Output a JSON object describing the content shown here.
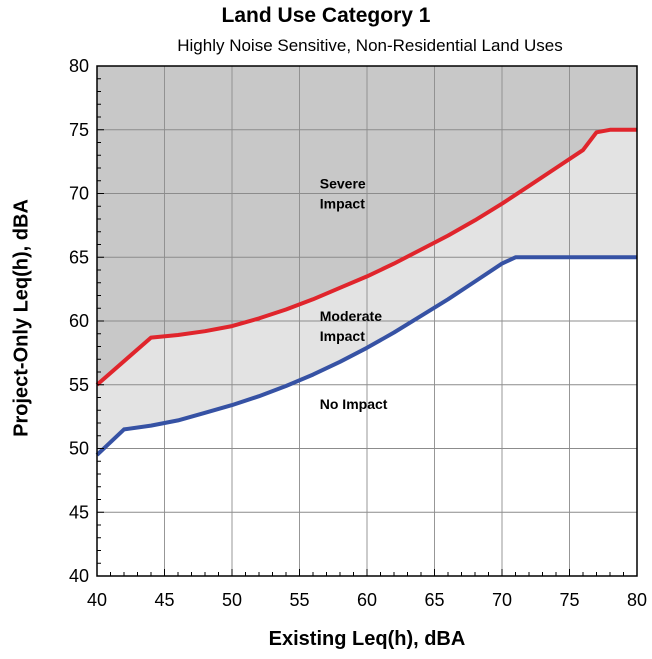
{
  "chart_data": {
    "type": "area",
    "title": "Land Use Category 1",
    "subtitle": "Highly Noise Sensitive, Non-Residential Land Uses",
    "xlabel": "Existing Leq(h), dBA",
    "ylabel": "Project-Only Leq(h), dBA",
    "xlim": [
      40,
      80
    ],
    "ylim": [
      40,
      80
    ],
    "x_ticks": [
      40,
      45,
      50,
      55,
      60,
      65,
      70,
      75,
      80
    ],
    "y_ticks": [
      40,
      45,
      50,
      55,
      60,
      65,
      70,
      75,
      80
    ],
    "grid": true,
    "series": [
      {
        "name": "",
        "color": "#e0252c",
        "x": [
          40,
          44,
          46,
          48,
          50,
          52,
          54,
          56,
          58,
          60,
          62,
          64,
          66,
          68,
          70,
          72,
          74,
          76,
          77,
          78,
          80
        ],
        "y": [
          55,
          58.7,
          58.9,
          59.2,
          59.6,
          60.2,
          60.9,
          61.7,
          62.6,
          63.5,
          64.5,
          65.6,
          66.7,
          67.9,
          69.2,
          70.6,
          72,
          73.4,
          74.8,
          75,
          75
        ]
      },
      {
        "name": "",
        "color": "#3652a4",
        "x": [
          40,
          42,
          44,
          46,
          48,
          50,
          52,
          54,
          56,
          58,
          60,
          62,
          64,
          66,
          68,
          70,
          71,
          72,
          75,
          80
        ],
        "y": [
          49.5,
          51.5,
          51.8,
          52.2,
          52.8,
          53.4,
          54.1,
          54.9,
          55.8,
          56.8,
          57.9,
          59.1,
          60.4,
          61.7,
          63.1,
          64.5,
          65,
          65,
          65,
          65
        ]
      }
    ],
    "regions": [
      {
        "label": "Severe Impact",
        "lines": [
          "Severe",
          "Impact"
        ],
        "fill": "#c8c8c8",
        "text_x": 56.5,
        "text_y": 70.4
      },
      {
        "label": "Moderate Impact",
        "lines": [
          "Moderate",
          "Impact"
        ],
        "fill": "#e3e3e3",
        "text_x": 56.5,
        "text_y": 60.0
      },
      {
        "label": "No Impact",
        "lines": [
          "No Impact"
        ],
        "fill": "#ffffff",
        "text_x": 56.5,
        "text_y": 53.1
      }
    ]
  }
}
